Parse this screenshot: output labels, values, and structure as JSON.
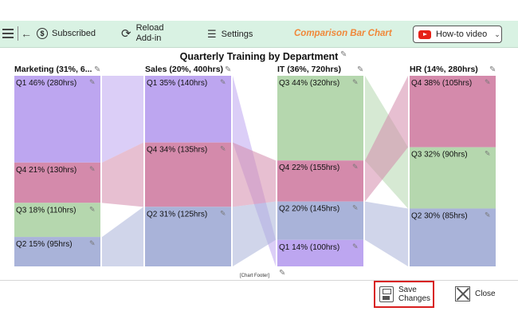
{
  "toolbar": {
    "subscribed_label": "Subscribed",
    "reload_line1": "Reload",
    "reload_line2": "Add-in",
    "settings_label": "Settings",
    "brand_label": "Comparison Bar Chart",
    "howto_label": "How-to video"
  },
  "chart_data": {
    "type": "bar",
    "title": "Quarterly Training by Department",
    "footer": "[Chart Footer]",
    "unit": "hrs",
    "columns": [
      {
        "header": "Marketing (31%, 6...",
        "segments": [
          {
            "label": "Q1 46% (280hrs)",
            "quarter": "Q1",
            "hours": 280,
            "color": "#bda6f0"
          },
          {
            "label": "Q4 21% (130hrs)",
            "quarter": "Q4",
            "hours": 130,
            "color": "#d48aab"
          },
          {
            "label": "Q3 18% (110hrs)",
            "quarter": "Q3",
            "hours": 110,
            "color": "#b5d7ae"
          },
          {
            "label": "Q2 15% (95hrs)",
            "quarter": "Q2",
            "hours": 95,
            "color": "#a9b3d9"
          }
        ]
      },
      {
        "header": "Sales (20%, 400hrs)",
        "segments": [
          {
            "label": "Q1 35% (140hrs)",
            "quarter": "Q1",
            "hours": 140,
            "color": "#bda6f0"
          },
          {
            "label": "Q4 34% (135hrs)",
            "quarter": "Q4",
            "hours": 135,
            "color": "#d48aab"
          },
          {
            "label": "Q2 31% (125hrs)",
            "quarter": "Q2",
            "hours": 125,
            "color": "#a9b3d9"
          }
        ]
      },
      {
        "header": "IT (36%, 720hrs)",
        "segments": [
          {
            "label": "Q3 44% (320hrs)",
            "quarter": "Q3",
            "hours": 320,
            "color": "#b5d7ae"
          },
          {
            "label": "Q4 22% (155hrs)",
            "quarter": "Q4",
            "hours": 155,
            "color": "#d48aab"
          },
          {
            "label": "Q2 20% (145hrs)",
            "quarter": "Q2",
            "hours": 145,
            "color": "#a9b3d9"
          },
          {
            "label": "Q1 14% (100hrs)",
            "quarter": "Q1",
            "hours": 100,
            "color": "#bda6f0"
          }
        ]
      },
      {
        "header": "HR (14%, 280hrs)",
        "segments": [
          {
            "label": "Q4 38% (105hrs)",
            "quarter": "Q4",
            "hours": 105,
            "color": "#d48aab"
          },
          {
            "label": "Q3 32% (90hrs)",
            "quarter": "Q3",
            "hours": 90,
            "color": "#b5d7ae"
          },
          {
            "label": "Q2 30% (85hrs)",
            "quarter": "Q2",
            "hours": 85,
            "color": "#a9b3d9"
          }
        ]
      }
    ]
  },
  "actions": {
    "save_line1": "Save",
    "save_line2": "Changes",
    "close_label": "Close"
  },
  "colors": {
    "toolbar_bg": "#d9f2e3",
    "brand": "#f0883a",
    "save_highlight": "#d81e1e",
    "youtube_red": "#e62117"
  }
}
